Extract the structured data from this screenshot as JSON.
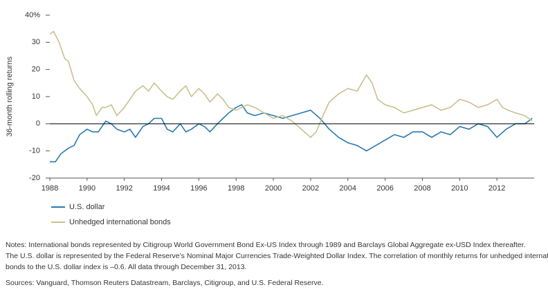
{
  "chart_data": {
    "type": "line",
    "y_label": "36-month rolling returns",
    "xlim": [
      1988,
      2014
    ],
    "xticks": [
      1988,
      1990,
      1992,
      1994,
      1996,
      1998,
      2000,
      2002,
      2004,
      2006,
      2008,
      2010,
      2012
    ],
    "ylim": [
      -20,
      40
    ],
    "yticks": [
      -20,
      -10,
      0,
      10,
      20,
      30,
      {
        "value": 40,
        "label": "40%"
      }
    ],
    "series": [
      {
        "name": "U.S. dollar",
        "color": "#2878b0",
        "x": [
          1988.0,
          1988.3,
          1988.6,
          1989.0,
          1989.3,
          1989.6,
          1990.0,
          1990.3,
          1990.6,
          1991.0,
          1991.3,
          1991.6,
          1992.0,
          1992.3,
          1992.6,
          1993.0,
          1993.3,
          1993.6,
          1994.0,
          1994.3,
          1994.6,
          1995.0,
          1995.3,
          1995.6,
          1996.0,
          1996.3,
          1996.6,
          1997.0,
          1997.3,
          1997.6,
          1998.0,
          1998.3,
          1998.6,
          1999.0,
          1999.5,
          2000.0,
          2000.5,
          2001.0,
          2001.5,
          2002.0,
          2002.5,
          2003.0,
          2003.5,
          2004.0,
          2004.5,
          2005.0,
          2005.5,
          2006.0,
          2006.5,
          2007.0,
          2007.5,
          2008.0,
          2008.5,
          2009.0,
          2009.5,
          2010.0,
          2010.5,
          2011.0,
          2011.5,
          2012.0,
          2012.5,
          2013.0,
          2013.5,
          2013.9
        ],
        "values": [
          -14,
          -14,
          -11,
          -9,
          -8,
          -4,
          -2,
          -3,
          -3,
          1,
          0,
          -2,
          -3,
          -2,
          -5,
          -1,
          0,
          2,
          2,
          -2,
          -3,
          0,
          -3,
          -2,
          0,
          -1,
          -3,
          0,
          2,
          4,
          6,
          7,
          4,
          3,
          4,
          3,
          2,
          3,
          4,
          5,
          2,
          -2,
          -5,
          -7,
          -8,
          -10,
          -8,
          -6,
          -4,
          -5,
          -3,
          -3,
          -5,
          -3,
          -4,
          -1,
          -2,
          0,
          -1,
          -5,
          -2,
          0,
          0,
          2
        ]
      },
      {
        "name": "Unhedged international bonds",
        "color": "#c9c08e",
        "x": [
          1988.0,
          1988.2,
          1988.5,
          1988.8,
          1989.0,
          1989.3,
          1989.6,
          1990.0,
          1990.3,
          1990.5,
          1990.8,
          1991.0,
          1991.3,
          1991.6,
          1992.0,
          1992.3,
          1992.6,
          1993.0,
          1993.3,
          1993.6,
          1994.0,
          1994.3,
          1994.6,
          1995.0,
          1995.3,
          1995.6,
          1996.0,
          1996.3,
          1996.6,
          1997.0,
          1997.3,
          1997.6,
          1998.0,
          1998.3,
          1998.6,
          1999.0,
          1999.5,
          2000.0,
          2000.5,
          2001.0,
          2001.5,
          2002.0,
          2002.3,
          2002.6,
          2003.0,
          2003.5,
          2004.0,
          2004.5,
          2005.0,
          2005.3,
          2005.6,
          2006.0,
          2006.5,
          2007.0,
          2007.5,
          2008.0,
          2008.5,
          2009.0,
          2009.5,
          2010.0,
          2010.5,
          2011.0,
          2011.5,
          2012.0,
          2012.3,
          2012.6,
          2013.0,
          2013.5,
          2013.9
        ],
        "values": [
          33,
          34,
          30,
          24,
          23,
          16,
          13,
          10,
          7,
          3,
          6,
          6,
          7,
          3,
          6,
          9,
          12,
          14,
          12,
          15,
          12,
          10,
          9,
          12,
          14,
          10,
          13,
          11,
          8,
          11,
          9,
          6,
          5,
          6,
          7,
          6,
          4,
          2,
          3,
          1,
          -2,
          -5,
          -3,
          2,
          8,
          11,
          13,
          12,
          18,
          15,
          9,
          7,
          6,
          4,
          5,
          6,
          7,
          5,
          6,
          9,
          8,
          6,
          7,
          9,
          6,
          5,
          4,
          3,
          1
        ]
      }
    ],
    "notes": [
      "Notes: International bonds represented by Citigroup World Government Bond Ex-US Index through 1989 and Barclays Global Aggregate ex-USD Index thereafter.",
      "The U.S. dollar is represented by the Federal Reserve’s Nominal Major Currencies Trade-Weighted Dollar Index. The correlation of monthly returns for unhedged international",
      "bonds to the U.S. dollar index is –0.6. All data through December 31, 2013."
    ],
    "sources": "Sources: Vanguard, Thomson Reuters Datastream, Barclays, Citigroup, and U.S. Federal Reserve."
  }
}
